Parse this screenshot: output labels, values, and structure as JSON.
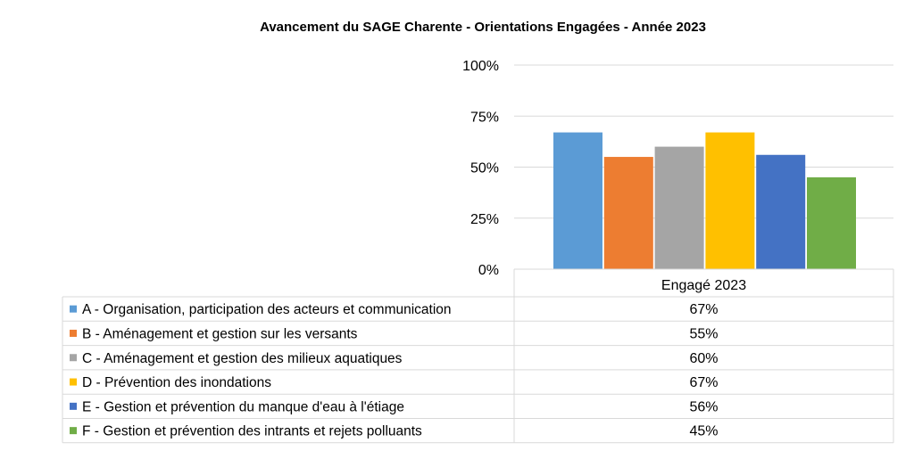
{
  "chart_data": {
    "type": "bar",
    "title": "Avancement du SAGE Charente -  Orientations Engagées - Année 2023",
    "xlabel": "",
    "ylabel": "",
    "ylim": [
      0,
      1
    ],
    "yticks": [
      "0%",
      "25%",
      "50%",
      "75%",
      "100%"
    ],
    "ytick_values": [
      0,
      0.25,
      0.5,
      0.75,
      1
    ],
    "grid": true,
    "categories": [
      "Engagé 2023"
    ],
    "legend_placement": "bottom-table",
    "series": [
      {
        "name": "A - Organisation, participation des acteurs et communication",
        "values": [
          0.67
        ],
        "label": "67%",
        "color": "#5B9BD5"
      },
      {
        "name": "B - Aménagement et gestion sur les versants",
        "values": [
          0.55
        ],
        "label": "55%",
        "color": "#ED7D31"
      },
      {
        "name": "C - Aménagement et gestion des milieux aquatiques",
        "values": [
          0.6
        ],
        "label": "60%",
        "color": "#A5A5A5"
      },
      {
        "name": "D - Prévention des inondations",
        "values": [
          0.67
        ],
        "label": "67%",
        "color": "#FFC000"
      },
      {
        "name": "E - Gestion et prévention du manque d'eau à l'étiage",
        "values": [
          0.56
        ],
        "label": "56%",
        "color": "#4472C4"
      },
      {
        "name": "F - Gestion et prévention des intrants et rejets polluants",
        "values": [
          0.45
        ],
        "label": "45%",
        "color": "#70AD47"
      }
    ]
  }
}
